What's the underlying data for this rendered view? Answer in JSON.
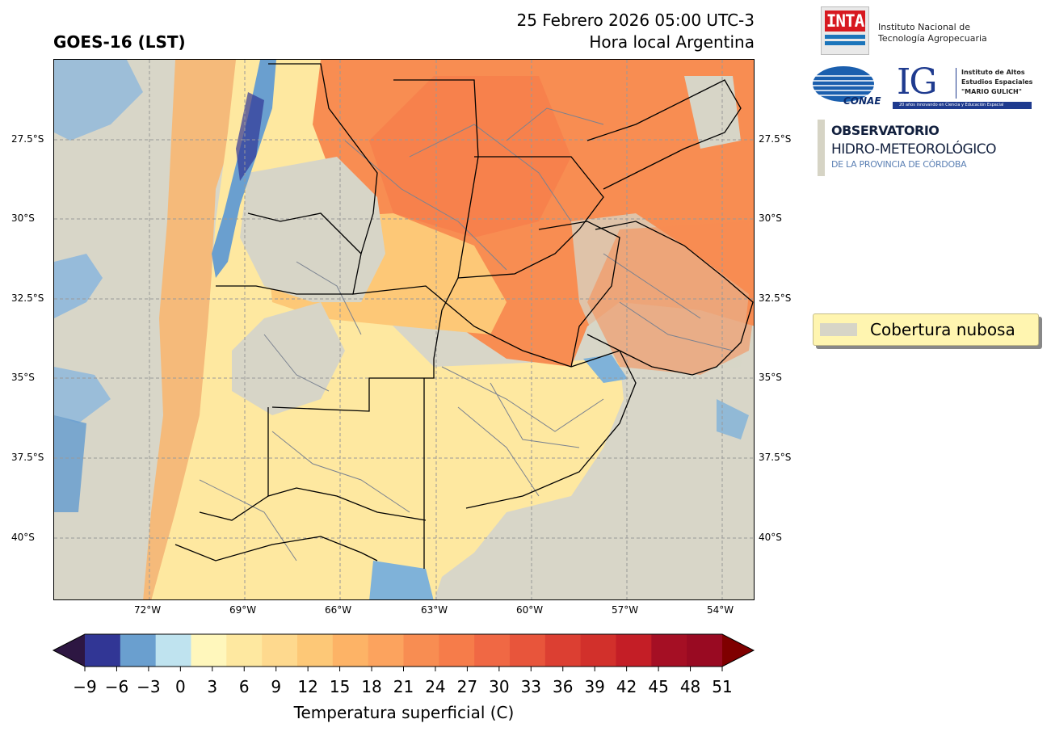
{
  "header": {
    "title": "GOES-16 (LST)",
    "datetime": "25 Febrero 2026 05:00 UTC-3",
    "local": "Hora local Argentina"
  },
  "map": {
    "lat_labels": [
      "27.5°S",
      "30°S",
      "32.5°S",
      "35°S",
      "37.5°S",
      "40°S"
    ],
    "lon_labels": [
      "72°W",
      "69°W",
      "66°W",
      "63°W",
      "60°W",
      "57°W",
      "54°W"
    ],
    "cloud_color": "#d7d5c7"
  },
  "logos": {
    "inta_word": "INTA",
    "inta_line1": "Instituto Nacional de",
    "inta_line2": "Tecnología Agropecuaria",
    "conae_word": "CONAE",
    "ig_word": "IG",
    "ig_line1": "Instituto de Altos",
    "ig_line2": "Estudios Espaciales",
    "ig_line3": "\"MARIO GULICH\"",
    "ig_bar": "20 años innovando en Ciencia y Educación Espacial",
    "obs_line1": "OBSERVATORIO",
    "obs_line2": "HIDRO-METEOROLÓGICO",
    "obs_line3": "DE LA PROVINCIA DE CÓRDOBA"
  },
  "legend": {
    "label": "Cobertura nubosa"
  },
  "colorbar": {
    "title": "Temperatura superficial (C)",
    "ticks": [
      "−9",
      "−6",
      "−3",
      "0",
      "3",
      "6",
      "9",
      "12",
      "15",
      "18",
      "21",
      "24",
      "27",
      "30",
      "33",
      "36",
      "39",
      "42",
      "45",
      "48",
      "51"
    ],
    "under_color": "#2d1642",
    "over_color": "#7f0000",
    "colors": [
      "#313695",
      "#6a9fcf",
      "#bfe3ef",
      "#fff7bc",
      "#fee8a0",
      "#fed98e",
      "#fdc877",
      "#fdb366",
      "#fca35e",
      "#f88d52",
      "#f67c4a",
      "#f06844",
      "#e8553b",
      "#dc3f32",
      "#d2302b",
      "#c41e26",
      "#a50f24",
      "#990a22"
    ]
  }
}
